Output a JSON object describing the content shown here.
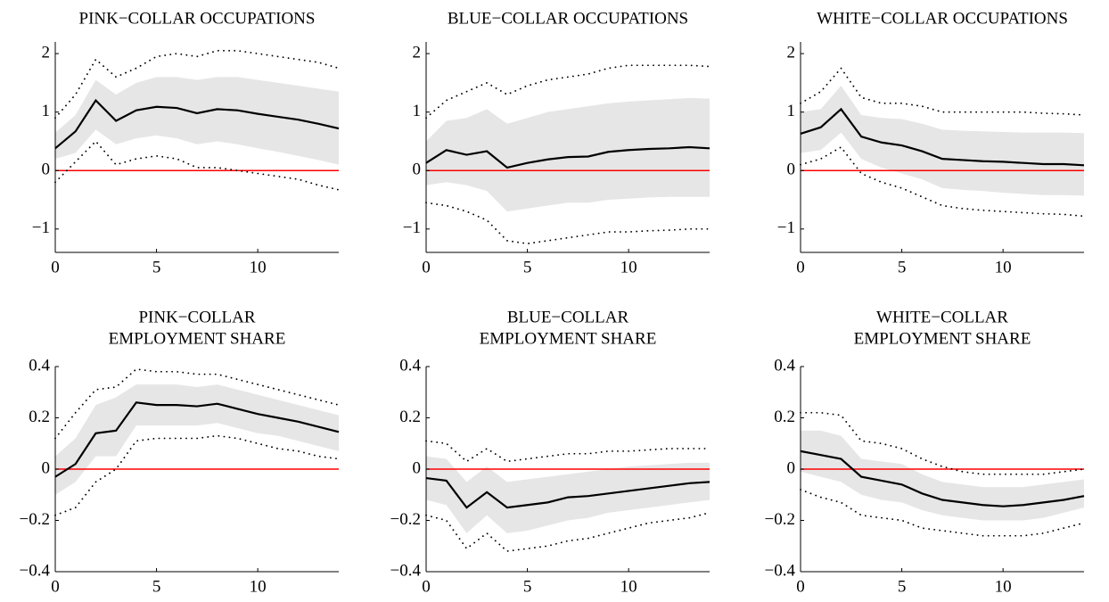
{
  "chart_data": [
    {
      "type": "line",
      "title": [
        "PINK−COLLAR OCCUPATIONS"
      ],
      "x": [
        0,
        1,
        2,
        3,
        4,
        5,
        6,
        7,
        8,
        9,
        10,
        11,
        12,
        13,
        14
      ],
      "values": [
        0.38,
        0.67,
        1.2,
        0.85,
        1.03,
        1.09,
        1.07,
        0.98,
        1.05,
        1.03,
        0.97,
        0.92,
        0.87,
        0.8,
        0.72
      ],
      "band_lower": [
        0.2,
        0.3,
        0.7,
        0.45,
        0.55,
        0.6,
        0.55,
        0.45,
        0.5,
        0.45,
        0.38,
        0.32,
        0.25,
        0.18,
        0.1
      ],
      "band_upper": [
        0.65,
        0.95,
        1.55,
        1.3,
        1.5,
        1.6,
        1.6,
        1.55,
        1.6,
        1.6,
        1.55,
        1.5,
        1.45,
        1.4,
        1.35
      ],
      "dotted_lower": [
        -0.2,
        0.15,
        0.5,
        0.1,
        0.2,
        0.25,
        0.2,
        0.05,
        0.05,
        0,
        -0.05,
        -0.1,
        -0.15,
        -0.25,
        -0.33
      ],
      "dotted_upper": [
        0.9,
        1.3,
        1.9,
        1.6,
        1.75,
        1.95,
        2,
        1.95,
        2.05,
        2.05,
        2,
        1.95,
        1.9,
        1.85,
        1.75
      ],
      "color": "#000000",
      "band_color": "#e6e6e6",
      "hline": 0,
      "hline_color": "#ff0000",
      "xlim": [
        0,
        14
      ],
      "xticks": [
        0,
        5,
        10
      ],
      "ylim": [
        -1.4,
        2.2
      ],
      "yticks": [
        {
          "value": -1,
          "label": "−1"
        },
        0,
        1,
        2
      ]
    },
    {
      "type": "line",
      "title": [
        "BLUE−COLLAR OCCUPATIONS"
      ],
      "x": [
        0,
        1,
        2,
        3,
        4,
        5,
        6,
        7,
        8,
        9,
        10,
        11,
        12,
        13,
        14
      ],
      "values": [
        0.13,
        0.35,
        0.27,
        0.33,
        0.05,
        0.13,
        0.19,
        0.23,
        0.24,
        0.32,
        0.35,
        0.37,
        0.38,
        0.4,
        0.38
      ],
      "band_lower": [
        -0.25,
        -0.2,
        -0.25,
        -0.35,
        -0.7,
        -0.65,
        -0.6,
        -0.55,
        -0.55,
        -0.5,
        -0.48,
        -0.46,
        -0.45,
        -0.45,
        -0.45
      ],
      "band_upper": [
        0.5,
        0.85,
        0.9,
        1.05,
        0.8,
        0.9,
        1,
        1.05,
        1.1,
        1.15,
        1.18,
        1.2,
        1.22,
        1.24,
        1.23
      ],
      "dotted_lower": [
        -0.55,
        -0.6,
        -0.7,
        -0.85,
        -1.2,
        -1.25,
        -1.2,
        -1.15,
        -1.1,
        -1.05,
        -1.05,
        -1.03,
        -1.02,
        -1,
        -1
      ],
      "dotted_upper": [
        0.9,
        1.2,
        1.35,
        1.5,
        1.3,
        1.45,
        1.55,
        1.6,
        1.65,
        1.75,
        1.8,
        1.8,
        1.8,
        1.8,
        1.78
      ],
      "color": "#000000",
      "band_color": "#e6e6e6",
      "hline": 0,
      "hline_color": "#ff0000",
      "xlim": [
        0,
        14
      ],
      "xticks": [
        0,
        5,
        10
      ],
      "ylim": [
        -1.4,
        2.2
      ],
      "yticks": [
        {
          "value": -1,
          "label": "−1"
        },
        0,
        1,
        2
      ]
    },
    {
      "type": "line",
      "title": [
        "WHITE−COLLAR OCCUPATIONS"
      ],
      "x": [
        0,
        1,
        2,
        3,
        4,
        5,
        6,
        7,
        8,
        9,
        10,
        11,
        12,
        13,
        14
      ],
      "values": [
        0.63,
        0.74,
        1.05,
        0.58,
        0.48,
        0.43,
        0.33,
        0.2,
        0.18,
        0.16,
        0.15,
        0.13,
        0.11,
        0.11,
        0.09
      ],
      "band_lower": [
        0.3,
        0.35,
        0.65,
        0.2,
        0.05,
        -0.05,
        -0.15,
        -0.3,
        -0.33,
        -0.35,
        -0.38,
        -0.4,
        -0.42,
        -0.42,
        -0.43
      ],
      "band_upper": [
        1,
        1.05,
        1.45,
        0.95,
        0.9,
        0.88,
        0.8,
        0.7,
        0.68,
        0.67,
        0.66,
        0.65,
        0.65,
        0.65,
        0.64
      ],
      "dotted_lower": [
        0.1,
        0.2,
        0.4,
        -0.05,
        -0.2,
        -0.3,
        -0.45,
        -0.6,
        -0.65,
        -0.68,
        -0.7,
        -0.72,
        -0.74,
        -0.75,
        -0.78
      ],
      "dotted_upper": [
        1.15,
        1.35,
        1.75,
        1.25,
        1.15,
        1.15,
        1.1,
        1,
        1,
        1,
        1,
        1,
        0.98,
        0.97,
        0.95
      ],
      "color": "#000000",
      "band_color": "#e6e6e6",
      "hline": 0,
      "hline_color": "#ff0000",
      "xlim": [
        0,
        14
      ],
      "xticks": [
        0,
        5,
        10
      ],
      "ylim": [
        -1.4,
        2.2
      ],
      "yticks": [
        {
          "value": -1,
          "label": "−1"
        },
        0,
        1,
        2
      ]
    },
    {
      "type": "line",
      "title": [
        "PINK−COLLAR",
        "EMPLOYMENT SHARE"
      ],
      "x": [
        0,
        1,
        2,
        3,
        4,
        5,
        6,
        7,
        8,
        9,
        10,
        11,
        12,
        13,
        14
      ],
      "values": [
        -0.03,
        0.02,
        0.14,
        0.15,
        0.26,
        0.25,
        0.25,
        0.245,
        0.255,
        0.235,
        0.215,
        0.2,
        0.185,
        0.165,
        0.145
      ],
      "band_lower": [
        -0.1,
        -0.05,
        0.05,
        0.05,
        0.17,
        0.17,
        0.17,
        0.17,
        0.18,
        0.16,
        0.14,
        0.13,
        0.11,
        0.09,
        0.07
      ],
      "band_upper": [
        0.05,
        0.12,
        0.25,
        0.28,
        0.33,
        0.33,
        0.33,
        0.32,
        0.33,
        0.31,
        0.29,
        0.27,
        0.25,
        0.23,
        0.21
      ],
      "dotted_lower": [
        -0.18,
        -0.15,
        -0.05,
        0,
        0.11,
        0.12,
        0.12,
        0.12,
        0.13,
        0.12,
        0.1,
        0.08,
        0.07,
        0.05,
        0.04
      ],
      "dotted_upper": [
        0.12,
        0.22,
        0.31,
        0.32,
        0.39,
        0.38,
        0.38,
        0.37,
        0.37,
        0.35,
        0.33,
        0.31,
        0.29,
        0.27,
        0.25
      ],
      "color": "#000000",
      "band_color": "#e6e6e6",
      "hline": 0,
      "hline_color": "#ff0000",
      "xlim": [
        0,
        14
      ],
      "xticks": [
        0,
        5,
        10
      ],
      "ylim": [
        -0.4,
        0.4
      ],
      "yticks": [
        {
          "value": -0.4,
          "label": "−0.4"
        },
        {
          "value": -0.2,
          "label": "−0.2"
        },
        0,
        0.2,
        0.4
      ]
    },
    {
      "type": "line",
      "title": [
        "BLUE−COLLAR",
        "EMPLOYMENT SHARE"
      ],
      "x": [
        0,
        1,
        2,
        3,
        4,
        5,
        6,
        7,
        8,
        9,
        10,
        11,
        12,
        13,
        14
      ],
      "values": [
        -0.035,
        -0.045,
        -0.15,
        -0.09,
        -0.15,
        -0.14,
        -0.13,
        -0.11,
        -0.105,
        -0.095,
        -0.085,
        -0.075,
        -0.065,
        -0.055,
        -0.05
      ],
      "band_lower": [
        -0.12,
        -0.14,
        -0.25,
        -0.18,
        -0.25,
        -0.24,
        -0.22,
        -0.2,
        -0.19,
        -0.17,
        -0.16,
        -0.15,
        -0.14,
        -0.13,
        -0.12
      ],
      "band_upper": [
        0.05,
        0.04,
        -0.05,
        0.01,
        -0.05,
        -0.04,
        -0.03,
        -0.02,
        -0.01,
        0,
        0.01,
        0.015,
        0.02,
        0.025,
        0.025
      ],
      "dotted_lower": [
        -0.18,
        -0.2,
        -0.31,
        -0.25,
        -0.32,
        -0.31,
        -0.3,
        -0.28,
        -0.27,
        -0.25,
        -0.23,
        -0.21,
        -0.2,
        -0.19,
        -0.17
      ],
      "dotted_upper": [
        0.11,
        0.1,
        0.03,
        0.08,
        0.03,
        0.04,
        0.05,
        0.06,
        0.06,
        0.07,
        0.07,
        0.075,
        0.08,
        0.08,
        0.08
      ],
      "color": "#000000",
      "band_color": "#e6e6e6",
      "hline": 0,
      "hline_color": "#ff0000",
      "xlim": [
        0,
        14
      ],
      "xticks": [
        0,
        5,
        10
      ],
      "ylim": [
        -0.4,
        0.4
      ],
      "yticks": [
        {
          "value": -0.4,
          "label": "−0.4"
        },
        {
          "value": -0.2,
          "label": "−0.2"
        },
        0,
        0.2,
        0.4
      ]
    },
    {
      "type": "line",
      "title": [
        "WHITE−COLLAR",
        "EMPLOYMENT SHARE"
      ],
      "x": [
        0,
        1,
        2,
        3,
        4,
        5,
        6,
        7,
        8,
        9,
        10,
        11,
        12,
        13,
        14
      ],
      "values": [
        0.07,
        0.055,
        0.04,
        -0.03,
        -0.045,
        -0.06,
        -0.095,
        -0.12,
        -0.13,
        -0.14,
        -0.145,
        -0.14,
        -0.13,
        -0.12,
        -0.105
      ],
      "band_lower": [
        -0.01,
        -0.03,
        -0.05,
        -0.1,
        -0.12,
        -0.13,
        -0.16,
        -0.18,
        -0.19,
        -0.2,
        -0.2,
        -0.2,
        -0.19,
        -0.17,
        -0.15
      ],
      "band_upper": [
        0.15,
        0.15,
        0.13,
        0.04,
        0.03,
        0.02,
        -0.02,
        -0.05,
        -0.06,
        -0.07,
        -0.07,
        -0.07,
        -0.06,
        -0.05,
        -0.04
      ],
      "dotted_lower": [
        -0.08,
        -0.11,
        -0.13,
        -0.18,
        -0.19,
        -0.2,
        -0.23,
        -0.24,
        -0.25,
        -0.26,
        -0.26,
        -0.26,
        -0.25,
        -0.23,
        -0.21
      ],
      "dotted_upper": [
        0.22,
        0.22,
        0.21,
        0.11,
        0.1,
        0.08,
        0.04,
        0.01,
        -0.01,
        -0.02,
        -0.02,
        -0.02,
        -0.02,
        -0.01,
        0
      ],
      "color": "#000000",
      "band_color": "#e6e6e6",
      "hline": 0,
      "hline_color": "#ff0000",
      "xlim": [
        0,
        14
      ],
      "xticks": [
        0,
        5,
        10
      ],
      "ylim": [
        -0.4,
        0.4
      ],
      "yticks": [
        {
          "value": -0.4,
          "label": "−0.4"
        },
        {
          "value": -0.2,
          "label": "−0.2"
        },
        0,
        0.2,
        0.4
      ]
    }
  ]
}
